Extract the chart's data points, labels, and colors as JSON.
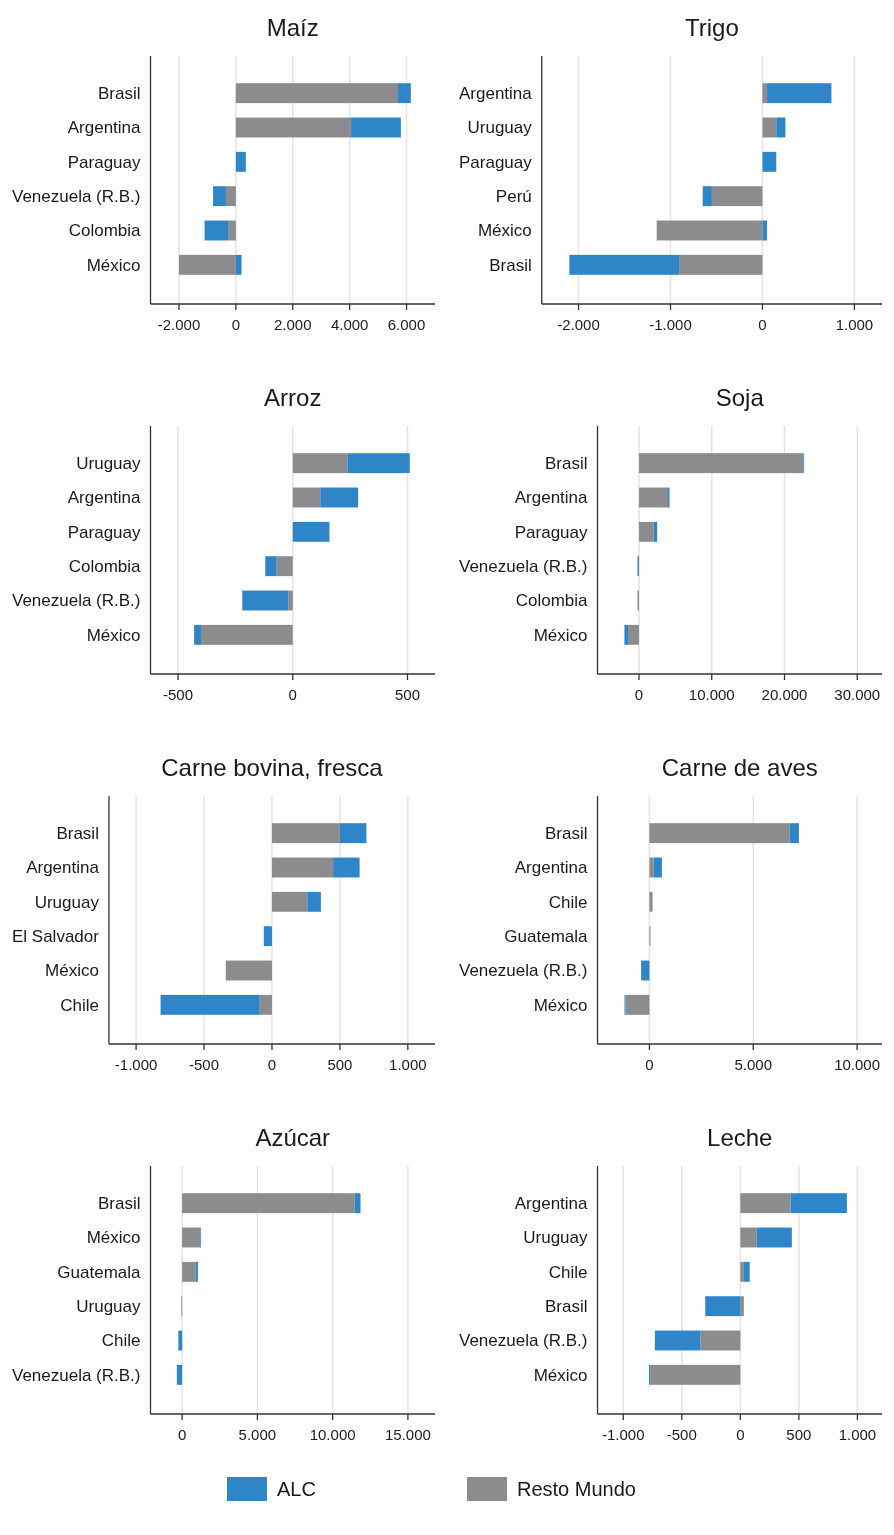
{
  "chart_data": [
    {
      "type": "bar",
      "orientation": "horizontal",
      "stacked": true,
      "grid": "x",
      "title": "Maíz",
      "categories": [
        "Brasil",
        "Argentina",
        "Paraguay",
        "Venezuela (R.B.)",
        "Colombia",
        "México"
      ],
      "series": [
        {
          "color": "#8c8c8f",
          "values": [
            5700,
            4050,
            null,
            -350,
            -250,
            -2000
          ]
        },
        {
          "color": "#2e86c8",
          "values": [
            450,
            1750,
            350,
            -450,
            -850,
            200
          ]
        }
      ],
      "xlim": [
        -3000,
        7000
      ],
      "xticks": [
        {
          "value": -2000,
          "label": "-2.000"
        },
        0,
        {
          "value": 2000,
          "label": "2.000"
        },
        {
          "value": 4000,
          "label": "4.000"
        },
        {
          "value": 6000,
          "label": "6.000"
        }
      ]
    },
    {
      "type": "bar",
      "orientation": "horizontal",
      "stacked": true,
      "grid": "x",
      "title": "Trigo",
      "categories": [
        "Argentina",
        "Uruguay",
        "Paraguay",
        "Perú",
        "México",
        "Brasil"
      ],
      "series": [
        {
          "color": "#8c8c8f",
          "values": [
            50,
            150,
            null,
            -550,
            -1150,
            -900
          ]
        },
        {
          "color": "#2e86c8",
          "values": [
            700,
            100,
            150,
            -100,
            50,
            -1200
          ]
        }
      ],
      "xlim": [
        -2400,
        1300
      ],
      "xticks": [
        {
          "value": -2000,
          "label": "-2.000"
        },
        {
          "value": -1000,
          "label": "-1.000"
        },
        0,
        {
          "value": 1000,
          "label": "1.000"
        }
      ]
    },
    {
      "type": "bar",
      "orientation": "horizontal",
      "stacked": true,
      "grid": "x",
      "title": "Arroz",
      "categories": [
        "Uruguay",
        "Argentina",
        "Paraguay",
        "Colombia",
        "Venezuela (R.B.)",
        "México"
      ],
      "series": [
        {
          "color": "#8c8c8f",
          "values": [
            240,
            120,
            null,
            -70,
            -20,
            -400
          ]
        },
        {
          "color": "#2e86c8",
          "values": [
            270,
            165,
            160,
            -50,
            -200,
            -30
          ]
        }
      ],
      "xlim": [
        -620,
        620
      ],
      "xticks": [
        -500,
        0,
        500
      ]
    },
    {
      "type": "bar",
      "orientation": "horizontal",
      "stacked": true,
      "grid": "x",
      "title": "Soja",
      "categories": [
        "Brasil",
        "Argentina",
        "Paraguay",
        "Venezuela (R.B.)",
        "Colombia",
        "México"
      ],
      "series": [
        {
          "color": "#8c8c8f",
          "values": [
            22600,
            4000,
            2000,
            null,
            -200,
            -1500
          ]
        },
        {
          "color": "#2e86c8",
          "values": [
            100,
            200,
            500,
            -200,
            null,
            -500
          ]
        }
      ],
      "xlim": [
        -5700,
        33400
      ],
      "xticks": [
        0,
        {
          "value": 10000,
          "label": "10.000"
        },
        {
          "value": 20000,
          "label": "20.000"
        },
        {
          "value": 30000,
          "label": "30.000"
        }
      ]
    },
    {
      "type": "bar",
      "orientation": "horizontal",
      "stacked": true,
      "grid": "x",
      "title": "Carne bovina, fresca",
      "categories": [
        "Brasil",
        "Argentina",
        "Uruguay",
        "El Salvador",
        "México",
        "Chile"
      ],
      "series": [
        {
          "color": "#8c8c8f",
          "values": [
            500,
            450,
            260,
            null,
            -340,
            -90
          ]
        },
        {
          "color": "#2e86c8",
          "values": [
            195,
            195,
            100,
            -60,
            null,
            -730
          ]
        }
      ],
      "xlim": [
        -1200,
        1200
      ],
      "xticks": [
        {
          "value": -1000,
          "label": "-1.000"
        },
        -500,
        0,
        500,
        {
          "value": 1000,
          "label": "1.000"
        }
      ]
    },
    {
      "type": "bar",
      "orientation": "horizontal",
      "stacked": true,
      "grid": "x",
      "title": "Carne de aves",
      "categories": [
        "Brasil",
        "Argentina",
        "Chile",
        "Guatemala",
        "Venezuela (R.B.)",
        "México"
      ],
      "series": [
        {
          "color": "#8c8c8f",
          "values": [
            6750,
            200,
            150,
            50,
            null,
            -1150
          ]
        },
        {
          "color": "#2e86c8",
          "values": [
            450,
            400,
            null,
            null,
            -400,
            -50
          ]
        }
      ],
      "xlim": [
        -2500,
        11200
      ],
      "xticks": [
        0,
        {
          "value": 5000,
          "label": "5.000"
        },
        {
          "value": 10000,
          "label": "10.000"
        }
      ]
    },
    {
      "type": "bar",
      "orientation": "horizontal",
      "stacked": true,
      "grid": "x",
      "title": "Azúcar",
      "categories": [
        "Brasil",
        "México",
        "Guatemala",
        "Uruguay",
        "Chile",
        "Venezuela (R.B.)"
      ],
      "series": [
        {
          "color": "#8c8c8f",
          "values": [
            11450,
            1200,
            900,
            -50,
            null,
            null
          ]
        },
        {
          "color": "#2e86c8",
          "values": [
            400,
            50,
            150,
            null,
            -250,
            -350
          ]
        }
      ],
      "xlim": [
        -2100,
        16800
      ],
      "xticks": [
        0,
        {
          "value": 5000,
          "label": "5.000"
        },
        {
          "value": 10000,
          "label": "10.000"
        },
        {
          "value": 15000,
          "label": "15.000"
        }
      ]
    },
    {
      "type": "bar",
      "orientation": "horizontal",
      "stacked": true,
      "grid": "x",
      "legend": "bottom",
      "title": "Leche",
      "categories": [
        "Argentina",
        "Uruguay",
        "Chile",
        "Brasil",
        "Venezuela (R.B.)",
        "México"
      ],
      "series": [
        {
          "name": "Resto Mundo",
          "color": "#8c8c8f",
          "values": [
            430,
            140,
            30,
            30,
            -340,
            -770
          ]
        },
        {
          "name": "ALC",
          "color": "#2e86c8",
          "values": [
            480,
            300,
            50,
            -300,
            -390,
            -10
          ]
        }
      ],
      "xlim": [
        -1220,
        1210
      ],
      "xticks": [
        {
          "value": -1000,
          "label": "-1.000"
        },
        -500,
        0,
        500,
        {
          "value": 1000,
          "label": "1.000"
        }
      ]
    }
  ]
}
